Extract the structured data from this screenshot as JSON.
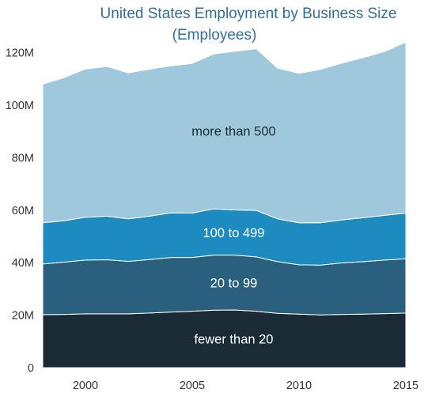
{
  "chart_data": {
    "type": "area",
    "stacked": true,
    "title": "United States Employment by Business Size",
    "subtitle": "(Employees)",
    "xlabel": "",
    "ylabel": "",
    "x": [
      1998,
      1999,
      2000,
      2001,
      2002,
      2003,
      2004,
      2005,
      2006,
      2007,
      2008,
      2009,
      2010,
      2011,
      2012,
      2013,
      2014,
      2015
    ],
    "xlim": [
      1998,
      2015
    ],
    "ylim": [
      0,
      125000000
    ],
    "x_ticks": [
      {
        "value": 2000,
        "label": "2000"
      },
      {
        "value": 2005,
        "label": "2005"
      },
      {
        "value": 2010,
        "label": "2010"
      },
      {
        "value": 2015,
        "label": "2015"
      }
    ],
    "y_ticks": [
      {
        "value": 0,
        "label": "0"
      },
      {
        "value": 20000000,
        "label": "20M"
      },
      {
        "value": 40000000,
        "label": "40M"
      },
      {
        "value": 60000000,
        "label": "60M"
      },
      {
        "value": 80000000,
        "label": "80M"
      },
      {
        "value": 100000000,
        "label": "100M"
      },
      {
        "value": 120000000,
        "label": "120M"
      }
    ],
    "grid": false,
    "series": [
      {
        "name": "fewer than 20",
        "color": "#1b2b35",
        "values": [
          20200000,
          20300000,
          20500000,
          20500000,
          20500000,
          20800000,
          21200000,
          21500000,
          21900000,
          22000000,
          21500000,
          20700000,
          20400000,
          20100000,
          20300000,
          20400000,
          20600000,
          20800000
        ]
      },
      {
        "name": "20 to 99",
        "color": "#2b5f7e",
        "values": [
          19300000,
          19900000,
          20500000,
          20600000,
          20000000,
          20400000,
          20800000,
          20500000,
          21000000,
          20900000,
          20700000,
          19700000,
          18800000,
          19000000,
          19600000,
          20000000,
          20400000,
          20700000
        ]
      },
      {
        "name": "100 to 499",
        "color": "#1d8bc0",
        "values": [
          15700000,
          15800000,
          16300000,
          16600000,
          16200000,
          16500000,
          17000000,
          16900000,
          17600000,
          17200000,
          17700000,
          16300000,
          16000000,
          16100000,
          16400000,
          16700000,
          17000000,
          17400000
        ]
      },
      {
        "name": "more than 500",
        "color": "#9fc8dc",
        "values": [
          52800000,
          54500000,
          56500000,
          57000000,
          55600000,
          56000000,
          56000000,
          57000000,
          59000000,
          60400000,
          61600000,
          57400000,
          56900000,
          58400000,
          59700000,
          61000000,
          62400000,
          65100000
        ]
      }
    ],
    "band_labels": [
      {
        "text": "fewer than 20",
        "color": "#ffffff"
      },
      {
        "text": "20 to 99",
        "color": "#ffffff"
      },
      {
        "text": "100 to 499",
        "color": "#ffffff"
      },
      {
        "text": "more than 500",
        "color": "#1b2b35"
      }
    ],
    "title_color": "#2e6f97"
  }
}
